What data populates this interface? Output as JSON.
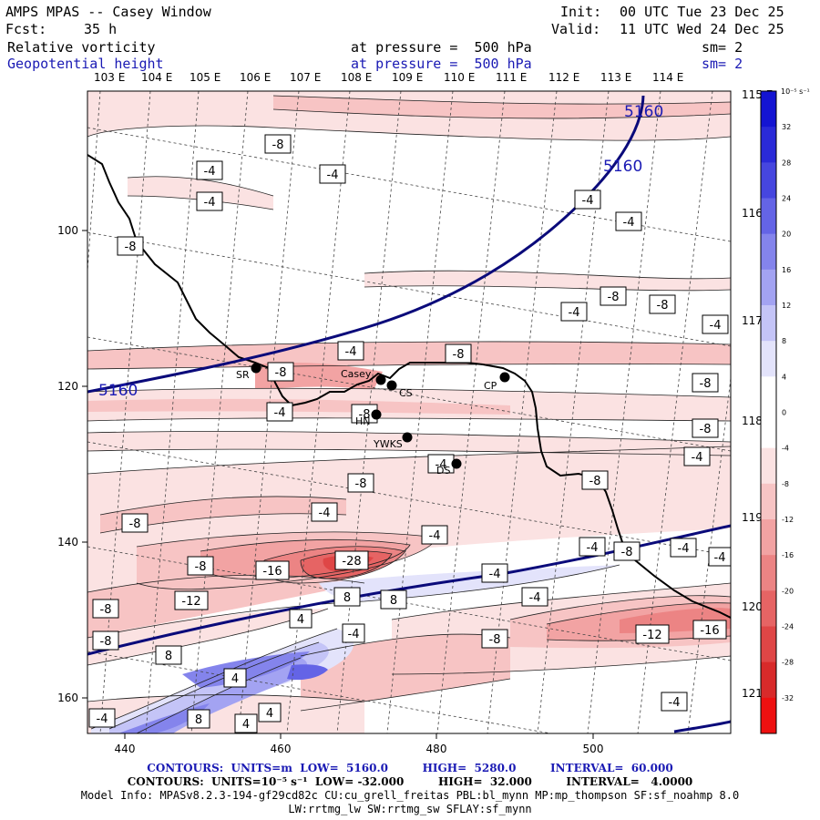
{
  "header": {
    "title": "AMPS MPAS -- Casey Window",
    "fcst_label": "Fcst:",
    "fcst_value": "35 h",
    "init_label": "Init:",
    "init_value": "00 UTC Tue 23 Dec 25",
    "valid_label": "Valid:",
    "valid_value": "11 UTC Wed 24 Dec 25",
    "field1_name": "Relative vorticity",
    "field2_name": "Geopotential height",
    "field1_level": "at pressure =  500 hPa",
    "field2_level": "at pressure =  500 hPa",
    "field1_smooth": "sm= 2",
    "field2_smooth": "sm= 2"
  },
  "map": {
    "top_lon_labels": [
      "103 E",
      "104 E",
      "105 E",
      "106 E",
      "107 E",
      "108 E",
      "109 E",
      "110 E",
      "111 E",
      "112 E",
      "113 E",
      "114 E"
    ],
    "right_lon_labels": [
      "115 E",
      "116 E",
      "117 E",
      "118 E",
      "119 E",
      "120 E",
      "121 E"
    ],
    "x_ticks": [
      "440",
      "460",
      "480",
      "500"
    ],
    "y_ticks": [
      "100",
      "120",
      "140",
      "160"
    ],
    "stations": [
      {
        "name": "SR"
      },
      {
        "name": "Casey"
      },
      {
        "name": "CS"
      },
      {
        "name": "CP"
      },
      {
        "name": "HN"
      },
      {
        "name": "YWKS"
      },
      {
        "name": "DS"
      }
    ],
    "height_contour_labels": [
      "5160",
      "5160",
      "5160"
    ],
    "vorticity_labels": [
      "-8",
      "-4",
      "-4",
      "-4",
      "-4",
      "-4",
      "-8",
      "-8",
      "-4",
      "-8",
      "-4",
      "-8",
      "-8",
      "-4",
      "-8",
      "-4",
      "-8",
      "-8",
      "-4",
      "-4",
      "-8",
      "-8",
      "-4",
      "-8",
      "-4",
      "-4",
      "-8",
      "-28",
      "-16",
      "-4",
      "-8",
      "-4",
      "-12",
      "-8",
      "8",
      "8",
      "-4",
      "-4",
      "4",
      "-12",
      "-16",
      "-8",
      "-8",
      "-4",
      "4",
      "8",
      "4",
      "8",
      "4",
      "-4",
      "-4"
    ]
  },
  "colorbar": {
    "units": "10⁻⁵ s⁻¹",
    "ticks": [
      "32",
      "28",
      "24",
      "20",
      "16",
      "12",
      "8",
      "4",
      "0",
      "-4",
      "-8",
      "-12",
      "-16",
      "-20",
      "-24",
      "-28",
      "-32"
    ],
    "colors": [
      "#1414d2",
      "#2a2ad8",
      "#4646df",
      "#6464e6",
      "#8484ec",
      "#a3a3f2",
      "#c4c4f7",
      "#e3e3fb",
      "#ffffff",
      "#ffffff",
      "#fbe2e2",
      "#f7c4c4",
      "#f2a3a3",
      "#ec8484",
      "#e66464",
      "#df4646",
      "#d82a2a",
      "#ee1010"
    ]
  },
  "footer": {
    "line1": "CONTOURS:  UNITS=m  LOW=  5160.0         HIGH=  5280.0         INTERVAL=  60.000",
    "line2": "CONTOURS:  UNITS=10⁻⁵ s⁻¹  LOW= -32.000         HIGH=  32.000         INTERVAL=   4.0000",
    "line3": "Model Info: MPASv8.2.3-194-gf29cd82c CU:cu_grell_freitas PBL:bl_mynn MP:mp_thompson SF:sf_noahmp 8.0",
    "line4": "LW:rrtmg_lw SW:rrtmg_sw SFLAY:sf_mynn"
  }
}
